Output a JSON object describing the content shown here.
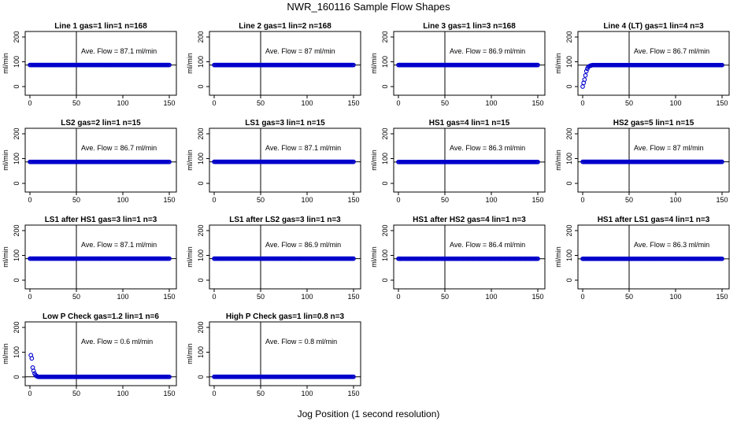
{
  "figure": {
    "title": "NWR_160116  Sample Flow Shapes",
    "xlabel": "Jog Position (1 second resolution)",
    "point_color": "#0000cc"
  },
  "chart_data": [
    {
      "type": "scatter",
      "title": "Line 1 gas=1 lin=1 n=168",
      "ylabel": "ml/min",
      "xlim": [
        0,
        150
      ],
      "ylim": [
        0,
        200
      ],
      "x_ticks": [
        0,
        50,
        100,
        150
      ],
      "y_ticks": [
        0,
        100,
        200
      ],
      "vline_x": 50,
      "hline_y": 87.1,
      "annotation": "Ave. Flow =  87.1  ml/min",
      "series": [
        {
          "shape": "flat",
          "x_range": [
            0,
            150
          ],
          "value": 87.1
        }
      ]
    },
    {
      "type": "scatter",
      "title": "Line 2 gas=1 lin=2 n=168",
      "ylabel": "ml/min",
      "xlim": [
        0,
        150
      ],
      "ylim": [
        0,
        200
      ],
      "x_ticks": [
        0,
        50,
        100,
        150
      ],
      "y_ticks": [
        0,
        100,
        200
      ],
      "vline_x": 50,
      "hline_y": 87,
      "annotation": "Ave. Flow =  87  ml/min",
      "series": [
        {
          "shape": "flat",
          "x_range": [
            0,
            150
          ],
          "value": 87
        }
      ]
    },
    {
      "type": "scatter",
      "title": "Line 3 gas=1 lin=3 n=168",
      "ylabel": "ml/min",
      "xlim": [
        0,
        150
      ],
      "ylim": [
        0,
        200
      ],
      "x_ticks": [
        0,
        50,
        100,
        150
      ],
      "y_ticks": [
        0,
        100,
        200
      ],
      "vline_x": 50,
      "hline_y": 86.9,
      "annotation": "Ave. Flow =  86.9  ml/min",
      "series": [
        {
          "shape": "flat",
          "x_range": [
            0,
            150
          ],
          "value": 86.9
        }
      ]
    },
    {
      "type": "scatter",
      "title": "Line 4 (LT) gas=1 lin=4 n=3",
      "ylabel": "ml/min",
      "xlim": [
        0,
        150
      ],
      "ylim": [
        0,
        200
      ],
      "x_ticks": [
        0,
        50,
        100,
        150
      ],
      "y_ticks": [
        0,
        100,
        200
      ],
      "vline_x": 50,
      "hline_y": 86.7,
      "annotation": "Ave. Flow =  86.7  ml/min",
      "series": [
        {
          "shape": "rise",
          "x_range": [
            0,
            150
          ],
          "value": 86.7,
          "points": [
            [
              0,
              0
            ],
            [
              1,
              15
            ],
            [
              2,
              28
            ],
            [
              3,
              45
            ],
            [
              4,
              62
            ],
            [
              5,
              72
            ],
            [
              6,
              79
            ],
            [
              7,
              82
            ],
            [
              8,
              84
            ],
            [
              9,
              85
            ],
            [
              10,
              86
            ]
          ]
        }
      ]
    },
    {
      "type": "scatter",
      "title": "LS2 gas=2 lin=1 n=15",
      "ylabel": "ml/min",
      "xlim": [
        0,
        150
      ],
      "ylim": [
        0,
        200
      ],
      "x_ticks": [
        0,
        50,
        100,
        150
      ],
      "y_ticks": [
        0,
        100,
        200
      ],
      "vline_x": 50,
      "hline_y": 86.7,
      "annotation": "Ave. Flow =  86.7  ml/min",
      "series": [
        {
          "shape": "flat",
          "x_range": [
            0,
            150
          ],
          "value": 86.7
        }
      ]
    },
    {
      "type": "scatter",
      "title": "LS1 gas=3 lin=1 n=15",
      "ylabel": "ml/min",
      "xlim": [
        0,
        150
      ],
      "ylim": [
        0,
        200
      ],
      "x_ticks": [
        0,
        50,
        100,
        150
      ],
      "y_ticks": [
        0,
        100,
        200
      ],
      "vline_x": 50,
      "hline_y": 87.1,
      "annotation": "Ave. Flow =  87.1  ml/min",
      "series": [
        {
          "shape": "flat",
          "x_range": [
            0,
            150
          ],
          "value": 87.1
        }
      ]
    },
    {
      "type": "scatter",
      "title": "HS1 gas=4 lin=1 n=15",
      "ylabel": "ml/min",
      "xlim": [
        0,
        150
      ],
      "ylim": [
        0,
        200
      ],
      "x_ticks": [
        0,
        50,
        100,
        150
      ],
      "y_ticks": [
        0,
        100,
        200
      ],
      "vline_x": 50,
      "hline_y": 86.3,
      "annotation": "Ave. Flow =  86.3  ml/min",
      "series": [
        {
          "shape": "flat",
          "x_range": [
            0,
            150
          ],
          "value": 86.3
        }
      ]
    },
    {
      "type": "scatter",
      "title": "HS2 gas=5 lin=1 n=15",
      "ylabel": "ml/min",
      "xlim": [
        0,
        150
      ],
      "ylim": [
        0,
        200
      ],
      "x_ticks": [
        0,
        50,
        100,
        150
      ],
      "y_ticks": [
        0,
        100,
        200
      ],
      "vline_x": 50,
      "hline_y": 87,
      "annotation": "Ave. Flow =  87  ml/min",
      "series": [
        {
          "shape": "flat",
          "x_range": [
            0,
            150
          ],
          "value": 87
        }
      ]
    },
    {
      "type": "scatter",
      "title": "LS1 after HS1 gas=3 lin=1 n=3",
      "ylabel": "ml/min",
      "xlim": [
        0,
        150
      ],
      "ylim": [
        0,
        200
      ],
      "x_ticks": [
        0,
        50,
        100,
        150
      ],
      "y_ticks": [
        0,
        100,
        200
      ],
      "vline_x": 50,
      "hline_y": 87.1,
      "annotation": "Ave. Flow =  87.1  ml/min",
      "series": [
        {
          "shape": "flat",
          "x_range": [
            0,
            150
          ],
          "value": 87.1
        }
      ]
    },
    {
      "type": "scatter",
      "title": "LS1 after LS2 gas=3 lin=1 n=3",
      "ylabel": "ml/min",
      "xlim": [
        0,
        150
      ],
      "ylim": [
        0,
        200
      ],
      "x_ticks": [
        0,
        50,
        100,
        150
      ],
      "y_ticks": [
        0,
        100,
        200
      ],
      "vline_x": 50,
      "hline_y": 86.9,
      "annotation": "Ave. Flow =  86.9  ml/min",
      "series": [
        {
          "shape": "flat",
          "x_range": [
            0,
            150
          ],
          "value": 86.9
        }
      ]
    },
    {
      "type": "scatter",
      "title": "HS1 after HS2 gas=4 lin=1 n=3",
      "ylabel": "ml/min",
      "xlim": [
        0,
        150
      ],
      "ylim": [
        0,
        200
      ],
      "x_ticks": [
        0,
        50,
        100,
        150
      ],
      "y_ticks": [
        0,
        100,
        200
      ],
      "vline_x": 50,
      "hline_y": 86.4,
      "annotation": "Ave. Flow =  86.4  ml/min",
      "series": [
        {
          "shape": "flat",
          "x_range": [
            0,
            150
          ],
          "value": 86.4
        }
      ]
    },
    {
      "type": "scatter",
      "title": "HS1 after LS1 gas=4 lin=1 n=3",
      "ylabel": "ml/min",
      "xlim": [
        0,
        150
      ],
      "ylim": [
        0,
        200
      ],
      "x_ticks": [
        0,
        50,
        100,
        150
      ],
      "y_ticks": [
        0,
        100,
        200
      ],
      "vline_x": 50,
      "hline_y": 86.3,
      "annotation": "Ave. Flow =  86.3  ml/min",
      "series": [
        {
          "shape": "flat",
          "x_range": [
            0,
            150
          ],
          "value": 86.3
        }
      ]
    },
    {
      "type": "scatter",
      "title": "Low P Check gas=1.2 lin=1 n=6",
      "ylabel": "ml/min",
      "xlim": [
        0,
        150
      ],
      "ylim": [
        0,
        200
      ],
      "x_ticks": [
        0,
        50,
        100,
        150
      ],
      "y_ticks": [
        0,
        100,
        200
      ],
      "vline_x": 50,
      "hline_y": 0.6,
      "annotation": "Ave. Flow =  0.6  ml/min",
      "series": [
        {
          "shape": "decay",
          "x_range": [
            0,
            150
          ],
          "value": 0.6,
          "points": [
            [
              1,
              88
            ],
            [
              2,
              75
            ],
            [
              3,
              38
            ],
            [
              4,
              25
            ],
            [
              5,
              14
            ],
            [
              6,
              8
            ],
            [
              7,
              4
            ],
            [
              8,
              2
            ],
            [
              9,
              1
            ]
          ]
        }
      ]
    },
    {
      "type": "scatter",
      "title": "High P Check gas=1 lin=0.8 n=3",
      "ylabel": "ml/min",
      "xlim": [
        0,
        150
      ],
      "ylim": [
        0,
        200
      ],
      "x_ticks": [
        0,
        50,
        100,
        150
      ],
      "y_ticks": [
        0,
        100,
        200
      ],
      "vline_x": 50,
      "hline_y": 0.8,
      "annotation": "Ave. Flow =  0.8  ml/min",
      "series": [
        {
          "shape": "flat",
          "x_range": [
            0,
            150
          ],
          "value": 0.8
        }
      ]
    }
  ]
}
